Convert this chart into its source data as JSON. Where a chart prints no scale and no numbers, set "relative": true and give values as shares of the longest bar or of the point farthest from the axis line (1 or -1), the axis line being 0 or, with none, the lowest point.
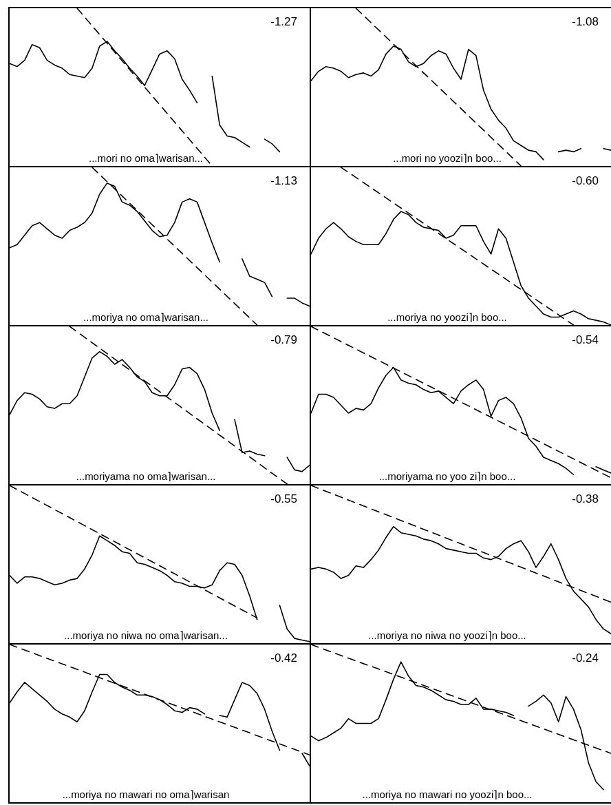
{
  "chart_data": [
    {
      "type": "line",
      "relative": true,
      "marker": "none",
      "grid": false,
      "legend": false,
      "tick_labels": false,
      "categories": [
        null,
        null,
        null,
        null,
        null,
        null,
        null,
        null,
        null,
        null,
        null,
        null,
        null,
        null,
        null,
        null,
        null,
        null,
        null,
        null,
        null,
        null,
        null,
        null,
        null,
        null,
        null,
        null,
        null,
        null,
        null,
        null,
        null,
        null,
        null,
        null,
        null,
        null,
        null,
        null,
        null
      ],
      "annotations": [
        "-1.27",
        "...mori no oma⌉warisan..."
      ],
      "series": [
        {
          "color": "#000000",
          "line_style": "solid",
          "values": [
            0.65,
            0.63,
            0.67,
            0.77,
            0.75,
            0.67,
            0.64,
            0.62,
            0.58,
            0.57,
            0.56,
            0.62,
            0.76,
            0.79,
            0.73,
            0.68,
            0.62,
            0.57,
            0.51,
            0.61,
            0.71,
            0.73,
            0.68,
            0.55,
            0.48,
            0.4,
            null,
            null,
            null,
            null,
            null,
            null,
            null,
            null,
            null,
            null,
            null,
            null,
            null,
            null,
            null
          ]
        },
        {
          "color": "#000000",
          "line_style": "solid",
          "values": [
            null,
            null,
            null,
            null,
            null,
            null,
            null,
            null,
            null,
            null,
            null,
            null,
            null,
            null,
            null,
            null,
            null,
            null,
            null,
            null,
            null,
            null,
            null,
            null,
            null,
            null,
            null,
            0.57,
            0.26,
            0.19,
            0.18,
            0.15,
            0.12,
            null,
            null,
            null,
            null,
            null,
            null,
            null,
            null
          ]
        },
        {
          "color": "#000000",
          "line_style": "solid",
          "values": [
            null,
            null,
            null,
            null,
            null,
            null,
            null,
            null,
            null,
            null,
            null,
            null,
            null,
            null,
            null,
            null,
            null,
            null,
            null,
            null,
            null,
            null,
            null,
            null,
            null,
            null,
            null,
            null,
            null,
            null,
            null,
            null,
            null,
            null,
            0.17,
            0.14,
            0.09,
            null,
            null,
            null,
            null
          ]
        },
        {
          "color": "#000000",
          "line_style": "dashed",
          "values": [
            null,
            null,
            null,
            null,
            null,
            null,
            null,
            null,
            null,
            1,
            null,
            null,
            null,
            null,
            null,
            null,
            null,
            null,
            null,
            null,
            null,
            null,
            null,
            null,
            null,
            null,
            null,
            0,
            null,
            null,
            null,
            null,
            null,
            null,
            null,
            null,
            null,
            null,
            null,
            null,
            null
          ]
        }
      ]
    },
    {
      "type": "line",
      "relative": true,
      "marker": "none",
      "grid": false,
      "legend": false,
      "tick_labels": false,
      "categories": [
        null,
        null,
        null,
        null,
        null,
        null,
        null,
        null,
        null,
        null,
        null,
        null,
        null,
        null,
        null,
        null,
        null,
        null,
        null,
        null,
        null,
        null,
        null,
        null,
        null,
        null,
        null,
        null,
        null,
        null,
        null,
        null,
        null,
        null,
        null,
        null,
        null,
        null,
        null,
        null,
        null
      ],
      "annotations": [
        "-1.08",
        "...mori no yoozi⌉n boo..."
      ],
      "series": [
        {
          "color": "#000000",
          "line_style": "solid",
          "values": [
            0.54,
            0.6,
            0.63,
            0.62,
            0.6,
            0.56,
            0.58,
            0.59,
            0.57,
            0.61,
            0.71,
            0.76,
            0.74,
            0.66,
            0.63,
            0.65,
            0.7,
            0.73,
            0.71,
            0.62,
            0.55,
            0.74,
            0.7,
            0.48,
            0.36,
            0.29,
            0.24,
            0.16,
            0.13,
            0.1,
            0.09,
            0.04,
            null,
            null,
            null,
            null,
            null,
            null,
            null,
            null,
            null
          ]
        },
        {
          "color": "#000000",
          "line_style": "solid",
          "values": [
            null,
            null,
            null,
            null,
            null,
            null,
            null,
            null,
            null,
            null,
            null,
            null,
            null,
            null,
            null,
            null,
            null,
            null,
            null,
            null,
            null,
            null,
            null,
            null,
            null,
            null,
            null,
            null,
            null,
            null,
            null,
            null,
            null,
            0.09,
            0.1,
            0.09,
            0.11,
            null,
            null,
            null,
            null
          ]
        },
        {
          "color": "#000000",
          "line_style": "solid",
          "values": [
            null,
            null,
            null,
            null,
            null,
            null,
            null,
            null,
            null,
            null,
            null,
            null,
            null,
            null,
            null,
            null,
            null,
            null,
            null,
            null,
            null,
            null,
            null,
            null,
            null,
            null,
            null,
            null,
            null,
            null,
            null,
            null,
            null,
            null,
            null,
            null,
            null,
            null,
            null,
            0.11,
            0.1
          ]
        },
        {
          "color": "#000000",
          "line_style": "dashed",
          "values": [
            null,
            null,
            null,
            null,
            null,
            null,
            1,
            null,
            null,
            null,
            null,
            null,
            null,
            null,
            null,
            null,
            null,
            null,
            null,
            null,
            null,
            null,
            null,
            null,
            null,
            null,
            null,
            null,
            0,
            null,
            null,
            null,
            null,
            null,
            null,
            null,
            null,
            null,
            null,
            null,
            null
          ]
        }
      ]
    },
    {
      "type": "line",
      "relative": true,
      "marker": "none",
      "grid": false,
      "legend": false,
      "tick_labels": false,
      "categories": [
        null,
        null,
        null,
        null,
        null,
        null,
        null,
        null,
        null,
        null,
        null,
        null,
        null,
        null,
        null,
        null,
        null,
        null,
        null,
        null,
        null,
        null,
        null,
        null,
        null,
        null,
        null,
        null,
        null,
        null,
        null,
        null,
        null,
        null,
        null,
        null,
        null,
        null,
        null,
        null,
        null
      ],
      "annotations": [
        "-1.13",
        "...moriya no oma⌉warisan..."
      ],
      "series": [
        {
          "color": "#000000",
          "line_style": "solid",
          "values": [
            0.49,
            0.51,
            0.57,
            0.63,
            0.65,
            0.61,
            0.57,
            0.55,
            0.6,
            0.62,
            0.65,
            0.71,
            0.83,
            0.9,
            0.88,
            0.78,
            0.76,
            0.72,
            0.66,
            0.6,
            0.56,
            0.57,
            0.65,
            0.78,
            0.8,
            0.78,
            0.65,
            0.52,
            0.4,
            null,
            null,
            null,
            null,
            null,
            null,
            null,
            null,
            null,
            null,
            null,
            null
          ]
        },
        {
          "color": "#000000",
          "line_style": "solid",
          "values": [
            null,
            null,
            null,
            null,
            null,
            null,
            null,
            null,
            null,
            null,
            null,
            null,
            null,
            null,
            null,
            null,
            null,
            null,
            null,
            null,
            null,
            null,
            null,
            null,
            null,
            null,
            null,
            null,
            null,
            null,
            null,
            0.42,
            0.31,
            0.29,
            0.27,
            0.18,
            null,
            null,
            null,
            null,
            null
          ]
        },
        {
          "color": "#000000",
          "line_style": "solid",
          "values": [
            null,
            null,
            null,
            null,
            null,
            null,
            null,
            null,
            null,
            null,
            null,
            null,
            null,
            null,
            null,
            null,
            null,
            null,
            null,
            null,
            null,
            null,
            null,
            null,
            null,
            null,
            null,
            null,
            null,
            null,
            null,
            null,
            null,
            null,
            null,
            null,
            null,
            0.17,
            0.17,
            0.14,
            0.12
          ]
        },
        {
          "color": "#000000",
          "line_style": "dashed",
          "values": [
            null,
            null,
            null,
            null,
            null,
            null,
            null,
            null,
            null,
            null,
            null,
            1,
            null,
            null,
            null,
            null,
            null,
            null,
            null,
            null,
            null,
            null,
            null,
            null,
            null,
            null,
            null,
            null,
            null,
            null,
            null,
            null,
            null,
            0,
            null,
            null,
            null,
            null,
            null,
            null,
            null
          ]
        }
      ]
    },
    {
      "type": "line",
      "relative": true,
      "marker": "none",
      "grid": false,
      "legend": false,
      "tick_labels": false,
      "categories": [
        null,
        null,
        null,
        null,
        null,
        null,
        null,
        null,
        null,
        null,
        null,
        null,
        null,
        null,
        null,
        null,
        null,
        null,
        null,
        null,
        null,
        null,
        null,
        null,
        null,
        null,
        null,
        null,
        null,
        null,
        null,
        null,
        null,
        null,
        null,
        null,
        null,
        null,
        null,
        null,
        null
      ],
      "annotations": [
        "-0.60",
        "...moriya no yoozi⌉n boo..."
      ],
      "series": [
        {
          "color": "#000000",
          "line_style": "solid",
          "values": [
            0.45,
            0.55,
            0.61,
            0.65,
            0.61,
            0.56,
            0.53,
            0.51,
            0.51,
            0.51,
            0.58,
            0.67,
            0.72,
            0.7,
            0.65,
            0.62,
            0.61,
            0.6,
            0.55,
            0.57,
            0.63,
            0.63,
            0.63,
            0.53,
            0.45,
            0.61,
            0.55,
            0.4,
            0.25,
            0.17,
            0.12,
            0.07,
            0.05,
            0.05,
            0.07,
            0.09,
            0.07,
            0.04,
            0.03,
            0.02,
            0
          ]
        },
        {
          "color": "#000000",
          "line_style": "dashed",
          "values": [
            null,
            null,
            null,
            null,
            1,
            null,
            null,
            null,
            null,
            null,
            null,
            null,
            null,
            null,
            null,
            null,
            null,
            null,
            null,
            null,
            null,
            null,
            null,
            null,
            null,
            null,
            null,
            null,
            null,
            null,
            null,
            null,
            null,
            null,
            null,
            0,
            null,
            null,
            null,
            null,
            null
          ]
        }
      ]
    },
    {
      "type": "line",
      "relative": true,
      "marker": "none",
      "grid": false,
      "legend": false,
      "tick_labels": false,
      "categories": [
        null,
        null,
        null,
        null,
        null,
        null,
        null,
        null,
        null,
        null,
        null,
        null,
        null,
        null,
        null,
        null,
        null,
        null,
        null,
        null,
        null,
        null,
        null,
        null,
        null,
        null,
        null,
        null,
        null,
        null,
        null,
        null,
        null,
        null,
        null,
        null,
        null,
        null,
        null,
        null,
        null
      ],
      "annotations": [
        "-0.79",
        "...moriyama no oma⌉warisan..."
      ],
      "series": [
        {
          "color": "#000000",
          "line_style": "solid",
          "values": [
            0.44,
            0.53,
            0.58,
            0.57,
            0.54,
            0.49,
            0.48,
            0.51,
            0.51,
            0.56,
            0.68,
            0.8,
            0.84,
            0.81,
            0.76,
            0.79,
            0.74,
            0.68,
            0.65,
            0.58,
            0.56,
            0.56,
            0.63,
            0.73,
            0.74,
            0.7,
            0.6,
            0.45,
            0.34,
            null,
            null,
            null,
            null,
            null,
            null,
            null,
            null,
            null,
            null,
            null,
            null
          ]
        },
        {
          "color": "#000000",
          "line_style": "solid",
          "values": [
            null,
            null,
            null,
            null,
            null,
            null,
            null,
            null,
            null,
            null,
            null,
            null,
            null,
            null,
            null,
            null,
            null,
            null,
            null,
            null,
            null,
            null,
            null,
            null,
            null,
            null,
            null,
            null,
            null,
            null,
            0.41,
            0.2,
            0.21,
            0.19,
            0.18,
            null,
            null,
            null,
            null,
            null,
            null
          ]
        },
        {
          "color": "#000000",
          "line_style": "solid",
          "values": [
            null,
            null,
            null,
            null,
            null,
            null,
            null,
            null,
            null,
            null,
            null,
            null,
            null,
            null,
            null,
            null,
            null,
            null,
            null,
            null,
            null,
            null,
            null,
            null,
            null,
            null,
            null,
            null,
            null,
            null,
            null,
            null,
            null,
            null,
            null,
            null,
            null,
            0.17,
            0.09,
            0.08,
            0.12
          ]
        },
        {
          "color": "#000000",
          "line_style": "dashed",
          "values": [
            null,
            null,
            null,
            null,
            null,
            null,
            null,
            null,
            1,
            null,
            null,
            null,
            null,
            null,
            null,
            null,
            null,
            null,
            null,
            null,
            null,
            null,
            null,
            null,
            null,
            null,
            null,
            null,
            null,
            null,
            null,
            null,
            null,
            null,
            null,
            null,
            null,
            0,
            null,
            null,
            null
          ]
        }
      ]
    },
    {
      "type": "line",
      "relative": true,
      "marker": "none",
      "grid": false,
      "legend": false,
      "tick_labels": false,
      "categories": [
        null,
        null,
        null,
        null,
        null,
        null,
        null,
        null,
        null,
        null,
        null,
        null,
        null,
        null,
        null,
        null,
        null,
        null,
        null,
        null,
        null,
        null,
        null,
        null,
        null,
        null,
        null,
        null,
        null,
        null,
        null,
        null,
        null,
        null,
        null,
        null,
        null,
        null,
        null,
        null,
        null
      ],
      "annotations": [
        "-0.54",
        "...moriyama no yoo zi⌉n boo..."
      ],
      "series": [
        {
          "color": "#000000",
          "line_style": "solid",
          "values": [
            0.45,
            0.57,
            0.57,
            0.55,
            0.5,
            0.45,
            0.48,
            0.47,
            0.51,
            0.61,
            0.69,
            0.74,
            0.66,
            0.64,
            0.63,
            0.6,
            0.58,
            0.59,
            0.55,
            0.51,
            0.59,
            0.63,
            0.66,
            0.6,
            0.43,
            0.53,
            0.55,
            0.51,
            0.42,
            0.29,
            0.24,
            0.17,
            0.15,
            0.13,
            0.1,
            0.06,
            null,
            null,
            null,
            null,
            null
          ]
        },
        {
          "color": "#000000",
          "line_style": "solid",
          "values": [
            null,
            null,
            null,
            null,
            null,
            null,
            null,
            null,
            null,
            null,
            null,
            null,
            null,
            null,
            null,
            null,
            null,
            null,
            null,
            null,
            null,
            null,
            null,
            null,
            null,
            null,
            null,
            null,
            null,
            null,
            null,
            null,
            null,
            null,
            null,
            null,
            null,
            null,
            0.11,
            0.09,
            0.07
          ]
        },
        {
          "color": "#000000",
          "line_style": "dashed",
          "values": [
            1,
            null,
            null,
            null,
            null,
            null,
            null,
            null,
            null,
            null,
            null,
            null,
            null,
            null,
            null,
            null,
            null,
            null,
            null,
            null,
            null,
            null,
            null,
            null,
            null,
            null,
            null,
            null,
            null,
            null,
            null,
            null,
            null,
            null,
            null,
            null,
            null,
            null,
            null,
            null,
            0.04
          ]
        }
      ]
    },
    {
      "type": "line",
      "relative": true,
      "marker": "none",
      "grid": false,
      "legend": false,
      "tick_labels": false,
      "categories": [
        null,
        null,
        null,
        null,
        null,
        null,
        null,
        null,
        null,
        null,
        null,
        null,
        null,
        null,
        null,
        null,
        null,
        null,
        null,
        null,
        null,
        null,
        null,
        null,
        null,
        null,
        null,
        null,
        null,
        null,
        null,
        null,
        null,
        null,
        null,
        null,
        null,
        null,
        null,
        null,
        null
      ],
      "annotations": [
        "-0.55",
        "...moriya no niwa no oma⌉warisan..."
      ],
      "series": [
        {
          "color": "#000000",
          "line_style": "solid",
          "values": [
            0.43,
            0.38,
            0.42,
            0.42,
            0.41,
            0.39,
            0.37,
            0.38,
            0.4,
            0.41,
            0.47,
            0.56,
            0.68,
            0.65,
            0.62,
            0.58,
            0.57,
            0.51,
            0.5,
            0.48,
            0.46,
            0.43,
            0.39,
            0.38,
            0.36,
            0.36,
            0.35,
            0.37,
            0.46,
            0.51,
            0.5,
            0.43,
            0.3,
            0.15,
            null,
            null,
            null,
            null,
            null,
            null,
            null
          ]
        },
        {
          "color": "#000000",
          "line_style": "solid",
          "values": [
            null,
            null,
            null,
            null,
            null,
            null,
            null,
            null,
            null,
            null,
            null,
            null,
            null,
            null,
            null,
            null,
            null,
            null,
            null,
            null,
            null,
            null,
            null,
            null,
            null,
            null,
            null,
            null,
            null,
            null,
            null,
            null,
            null,
            null,
            null,
            null,
            0.24,
            0.09,
            0.03,
            0.02,
            0.01
          ]
        },
        {
          "color": "#000000",
          "line_style": "dashed",
          "values": [
            1,
            null,
            null,
            null,
            null,
            null,
            null,
            null,
            null,
            null,
            null,
            null,
            null,
            null,
            null,
            null,
            null,
            null,
            null,
            null,
            null,
            null,
            null,
            null,
            null,
            null,
            null,
            null,
            null,
            null,
            null,
            null,
            null,
            0.16,
            null,
            null,
            null,
            null,
            null,
            null,
            null
          ]
        }
      ]
    },
    {
      "type": "line",
      "relative": true,
      "marker": "none",
      "grid": false,
      "legend": false,
      "tick_labels": false,
      "categories": [
        null,
        null,
        null,
        null,
        null,
        null,
        null,
        null,
        null,
        null,
        null,
        null,
        null,
        null,
        null,
        null,
        null,
        null,
        null,
        null,
        null,
        null,
        null,
        null,
        null,
        null,
        null,
        null,
        null,
        null,
        null,
        null,
        null,
        null,
        null,
        null,
        null,
        null,
        null,
        null,
        null
      ],
      "annotations": [
        "-0.38",
        "...moriya no niwa no yoozi⌉n boo..."
      ],
      "series": [
        {
          "color": "#000000",
          "line_style": "solid",
          "values": [
            0.47,
            0.48,
            0.47,
            0.45,
            0.41,
            0.43,
            0.49,
            0.48,
            0.53,
            0.59,
            0.67,
            0.74,
            0.7,
            0.69,
            0.68,
            0.66,
            0.65,
            0.63,
            0.6,
            0.59,
            0.58,
            0.57,
            0.57,
            0.54,
            0.53,
            0.55,
            0.6,
            0.63,
            0.65,
            0.58,
            0.48,
            0.55,
            0.63,
            0.53,
            0.41,
            0.33,
            0.28,
            0.23,
            0.15,
            0.09,
            0.06
          ]
        },
        {
          "color": "#000000",
          "line_style": "dashed",
          "values": [
            1,
            null,
            null,
            null,
            null,
            null,
            null,
            null,
            null,
            null,
            null,
            null,
            null,
            null,
            null,
            null,
            null,
            null,
            null,
            null,
            null,
            null,
            null,
            null,
            null,
            null,
            null,
            null,
            null,
            null,
            null,
            null,
            null,
            null,
            null,
            null,
            null,
            null,
            null,
            null,
            0.26
          ]
        }
      ]
    },
    {
      "type": "line",
      "relative": true,
      "marker": "none",
      "grid": false,
      "legend": false,
      "tick_labels": false,
      "categories": [
        null,
        null,
        null,
        null,
        null,
        null,
        null,
        null,
        null,
        null,
        null,
        null,
        null,
        null,
        null,
        null,
        null,
        null,
        null,
        null,
        null,
        null,
        null,
        null,
        null,
        null,
        null,
        null,
        null,
        null,
        null,
        null,
        null,
        null,
        null,
        null,
        null,
        null,
        null,
        null,
        null
      ],
      "annotations": [
        "-0.42",
        "...moriya no mawari no oma⌉warisan"
      ],
      "series": [
        {
          "color": "#000000",
          "line_style": "solid",
          "values": [
            0.63,
            0.7,
            0.76,
            0.72,
            0.68,
            0.64,
            0.59,
            0.56,
            0.54,
            0.51,
            0.58,
            0.7,
            0.81,
            0.81,
            0.76,
            0.73,
            0.71,
            0.68,
            0.68,
            0.67,
            0.65,
            0.62,
            0.58,
            0.57,
            0.6,
            0.59,
            0.56,
            null,
            null,
            null,
            null,
            null,
            null,
            null,
            null,
            null,
            null,
            null,
            null,
            null,
            null
          ]
        },
        {
          "color": "#000000",
          "line_style": "solid",
          "values": [
            null,
            null,
            null,
            null,
            null,
            null,
            null,
            null,
            null,
            null,
            null,
            null,
            null,
            null,
            null,
            null,
            null,
            null,
            null,
            null,
            null,
            null,
            null,
            null,
            null,
            null,
            null,
            null,
            0.55,
            0.54,
            0.65,
            0.76,
            0.74,
            0.69,
            0.59,
            0.45,
            0.33,
            null,
            null,
            null,
            null
          ]
        },
        {
          "color": "#000000",
          "line_style": "solid",
          "values": [
            null,
            null,
            null,
            null,
            null,
            null,
            null,
            null,
            null,
            null,
            null,
            null,
            null,
            null,
            null,
            null,
            null,
            null,
            null,
            null,
            null,
            null,
            null,
            null,
            null,
            null,
            null,
            null,
            null,
            null,
            null,
            null,
            null,
            null,
            null,
            null,
            null,
            null,
            null,
            0.31,
            0.23
          ]
        },
        {
          "color": "#000000",
          "line_style": "dashed",
          "values": [
            1,
            null,
            null,
            null,
            null,
            null,
            null,
            null,
            null,
            null,
            null,
            null,
            null,
            null,
            null,
            null,
            null,
            null,
            null,
            null,
            null,
            null,
            null,
            null,
            null,
            null,
            null,
            null,
            null,
            null,
            null,
            null,
            null,
            null,
            null,
            null,
            null,
            null,
            null,
            null,
            0.3
          ]
        }
      ]
    },
    {
      "type": "line",
      "relative": true,
      "marker": "none",
      "grid": false,
      "legend": false,
      "tick_labels": false,
      "categories": [
        null,
        null,
        null,
        null,
        null,
        null,
        null,
        null,
        null,
        null,
        null,
        null,
        null,
        null,
        null,
        null,
        null,
        null,
        null,
        null,
        null,
        null,
        null,
        null,
        null,
        null,
        null,
        null,
        null,
        null,
        null,
        null,
        null,
        null,
        null,
        null,
        null,
        null,
        null,
        null,
        null
      ],
      "annotations": [
        "-0.24",
        "...moriya no mawari no yoozi⌉n boo..."
      ],
      "series": [
        {
          "color": "#000000",
          "line_style": "solid",
          "values": [
            0.42,
            0.39,
            0.41,
            0.44,
            0.47,
            0.53,
            0.5,
            0.5,
            0.5,
            0.53,
            0.65,
            0.78,
            0.89,
            0.8,
            0.74,
            0.73,
            0.71,
            0.68,
            0.65,
            0.64,
            0.62,
            0.62,
            0.66,
            0.59,
            0.59,
            0.58,
            0.57,
            0.55,
            null,
            null,
            null,
            null,
            null,
            null,
            null,
            null,
            null,
            null,
            null,
            null,
            null
          ]
        },
        {
          "color": "#000000",
          "line_style": "solid",
          "values": [
            null,
            null,
            null,
            null,
            null,
            null,
            null,
            null,
            null,
            null,
            null,
            null,
            null,
            null,
            null,
            null,
            null,
            null,
            null,
            null,
            null,
            null,
            null,
            null,
            null,
            null,
            null,
            null,
            null,
            0.61,
            0.64,
            0.68,
            0.63,
            0.51,
            0.67,
            0.59,
            0.46,
            0.25,
            0.13,
            0.08,
            null
          ]
        },
        {
          "color": "#000000",
          "line_style": "dashed",
          "values": [
            1,
            null,
            null,
            null,
            null,
            null,
            null,
            null,
            null,
            null,
            null,
            null,
            null,
            null,
            null,
            null,
            null,
            null,
            null,
            null,
            null,
            null,
            null,
            null,
            null,
            null,
            null,
            null,
            null,
            null,
            null,
            null,
            null,
            null,
            null,
            null,
            null,
            null,
            null,
            null,
            0.31
          ]
        }
      ]
    }
  ]
}
